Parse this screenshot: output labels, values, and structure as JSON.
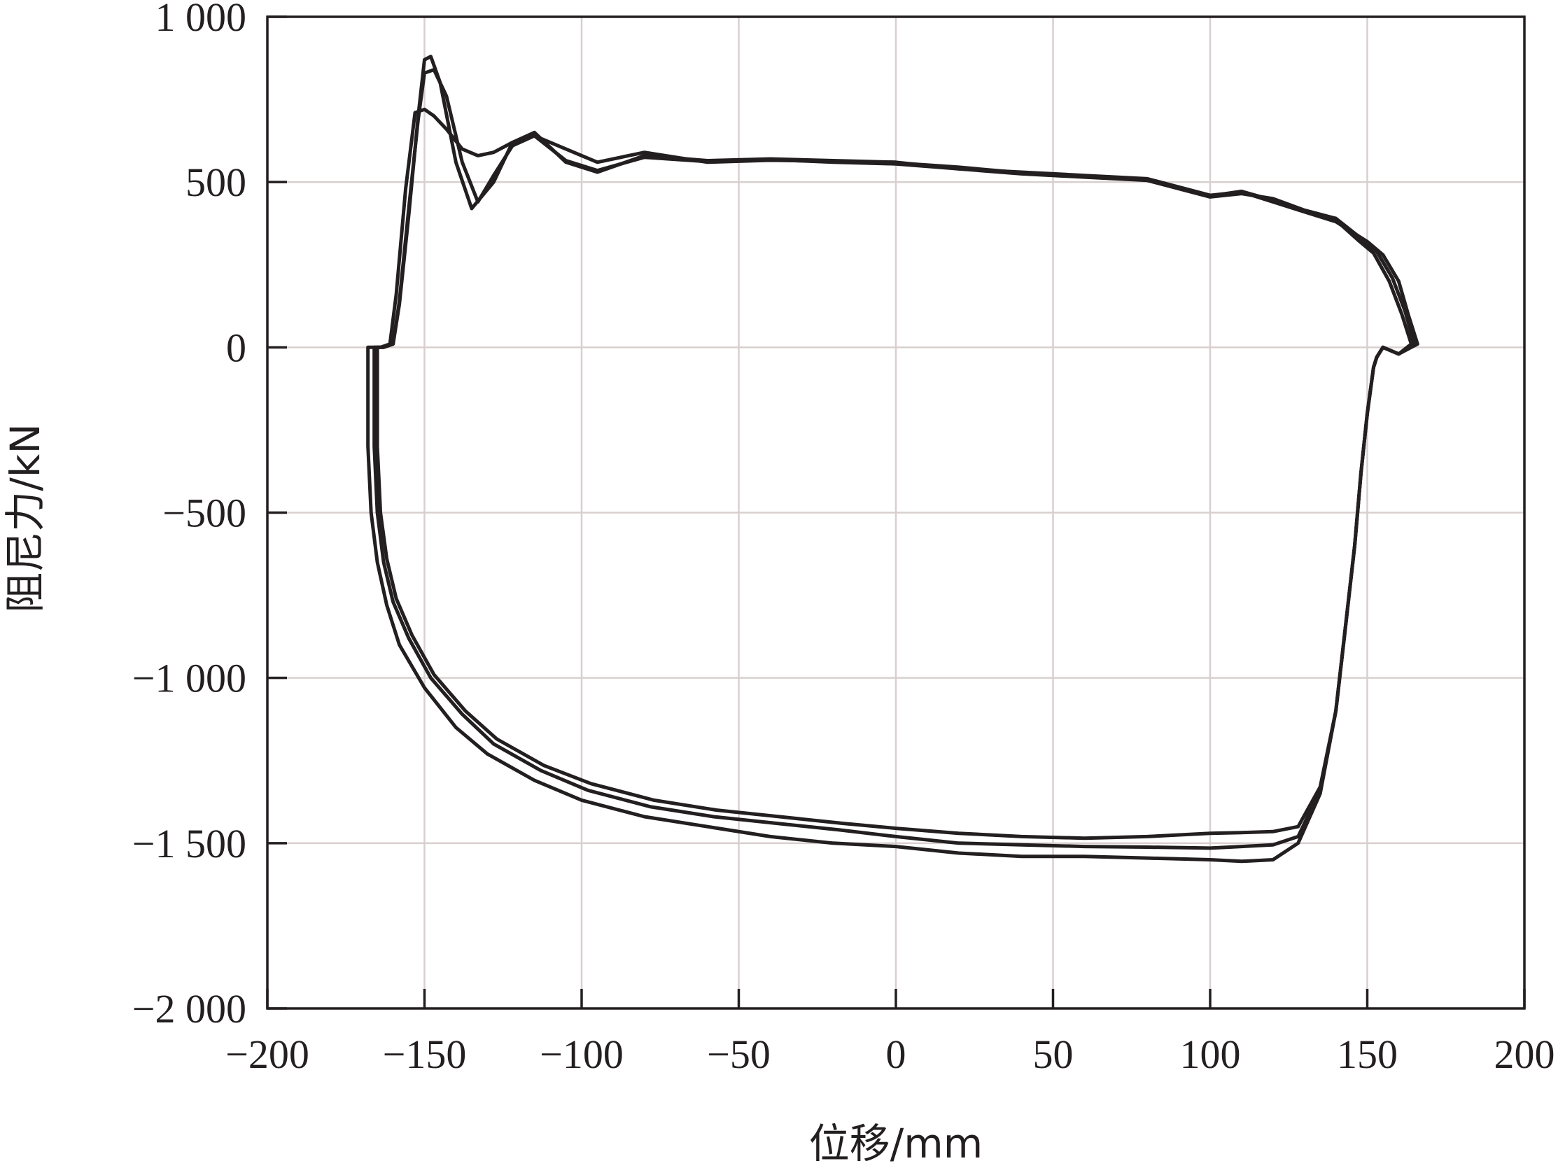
{
  "chart_data": {
    "type": "line",
    "xlabel": "位移/mm",
    "ylabel": "阻尼力/kN",
    "xlim": [
      -200,
      200
    ],
    "ylim": [
      -2000,
      1000
    ],
    "grid": true,
    "x_ticks": [
      -200,
      -150,
      -100,
      -50,
      0,
      50,
      100,
      150,
      200
    ],
    "x_tick_labels": [
      "−200",
      "−150",
      "−100",
      "−50",
      "0",
      "50",
      "100",
      "150",
      "200"
    ],
    "y_ticks": [
      1000,
      500,
      0,
      -500,
      -1000,
      -1500,
      -2000
    ],
    "y_tick_labels": [
      "1 000",
      "500",
      "0",
      "−500",
      "−1 000",
      "−1 500",
      "−2 000"
    ],
    "series": [
      {
        "x": [
          166,
          163,
          160,
          155,
          150,
          140,
          130,
          120,
          110,
          100,
          80,
          60,
          40,
          20,
          0,
          -20,
          -40,
          -60,
          -80,
          -95,
          -105,
          -115,
          -122,
          -128,
          -135,
          -140,
          -145,
          -148,
          -150,
          -152,
          -155,
          -158,
          -160,
          -163,
          -168,
          -168,
          -167,
          -165,
          -162,
          -158,
          -150,
          -140,
          -130,
          -115,
          -100,
          -80,
          -60,
          -40,
          -20,
          0,
          20,
          40,
          60,
          80,
          100,
          110,
          120,
          128,
          135,
          140,
          143,
          146,
          148,
          150,
          152,
          153,
          155,
          160,
          166
        ],
        "y": [
          10,
          100,
          200,
          280,
          320,
          380,
          410,
          440,
          470,
          460,
          510,
          520,
          530,
          540,
          560,
          565,
          570,
          565,
          580,
          530,
          560,
          650,
          620,
          500,
          420,
          560,
          800,
          880,
          870,
          700,
          400,
          130,
          10,
          0,
          0,
          -300,
          -500,
          -650,
          -780,
          -900,
          -1030,
          -1150,
          -1230,
          -1310,
          -1370,
          -1420,
          -1450,
          -1480,
          -1500,
          -1510,
          -1530,
          -1540,
          -1540,
          -1545,
          -1550,
          -1555,
          -1550,
          -1500,
          -1350,
          -1100,
          -850,
          -600,
          -380,
          -200,
          -60,
          -30,
          0,
          -20,
          10
        ]
      },
      {
        "x": [
          165,
          162,
          158,
          153,
          148,
          140,
          130,
          120,
          110,
          100,
          80,
          60,
          40,
          20,
          0,
          -20,
          -40,
          -60,
          -80,
          -95,
          -105,
          -115,
          -122,
          -128,
          -133,
          -138,
          -143,
          -147,
          -150,
          -152,
          -155,
          -158,
          -160,
          -163,
          -166,
          -166,
          -165,
          -163,
          -160,
          -155,
          -148,
          -138,
          -128,
          -113,
          -98,
          -78,
          -58,
          -38,
          -18,
          0,
          20,
          40,
          60,
          80,
          100,
          110,
          120,
          128,
          135,
          140,
          143,
          146,
          148,
          150,
          152,
          153,
          155,
          160,
          165
        ],
        "y": [
          10,
          110,
          210,
          290,
          330,
          390,
          415,
          450,
          465,
          455,
          505,
          515,
          525,
          540,
          555,
          560,
          568,
          562,
          575,
          535,
          565,
          640,
          610,
          520,
          440,
          560,
          760,
          840,
          830,
          690,
          420,
          140,
          10,
          0,
          0,
          -300,
          -500,
          -650,
          -770,
          -880,
          -1000,
          -1110,
          -1200,
          -1280,
          -1340,
          -1390,
          -1420,
          -1440,
          -1460,
          -1480,
          -1500,
          -1505,
          -1510,
          -1512,
          -1515,
          -1510,
          -1505,
          -1480,
          -1340,
          -1100,
          -850,
          -600,
          -380,
          -200,
          -60,
          -30,
          0,
          -20,
          10
        ]
      },
      {
        "x": [
          164,
          161,
          157,
          152,
          147,
          140,
          130,
          120,
          110,
          100,
          80,
          60,
          40,
          20,
          0,
          -20,
          -40,
          -60,
          -80,
          -95,
          -105,
          -115,
          -122,
          -128,
          -133,
          -138,
          -143,
          -147,
          -150,
          -153,
          -156,
          -159,
          -161,
          -164,
          -165,
          -165,
          -164,
          -162,
          -159,
          -154,
          -147,
          -137,
          -127,
          -112,
          -97,
          -77,
          -57,
          -37,
          -17,
          0,
          20,
          40,
          60,
          80,
          100,
          110,
          120,
          128,
          135,
          140,
          143,
          146,
          148,
          150,
          152,
          153,
          155,
          160,
          164
        ],
        "y": [
          10,
          100,
          200,
          285,
          325,
          385,
          412,
          445,
          472,
          458,
          508,
          518,
          528,
          545,
          558,
          563,
          566,
          560,
          590,
          560,
          600,
          640,
          620,
          590,
          580,
          600,
          660,
          700,
          720,
          710,
          480,
          160,
          10,
          0,
          0,
          -300,
          -500,
          -640,
          -760,
          -870,
          -990,
          -1100,
          -1185,
          -1265,
          -1320,
          -1370,
          -1400,
          -1420,
          -1440,
          -1455,
          -1470,
          -1480,
          -1485,
          -1480,
          -1470,
          -1468,
          -1465,
          -1450,
          -1330,
          -1100,
          -850,
          -600,
          -380,
          -200,
          -60,
          -30,
          0,
          -20,
          10
        ]
      }
    ]
  }
}
